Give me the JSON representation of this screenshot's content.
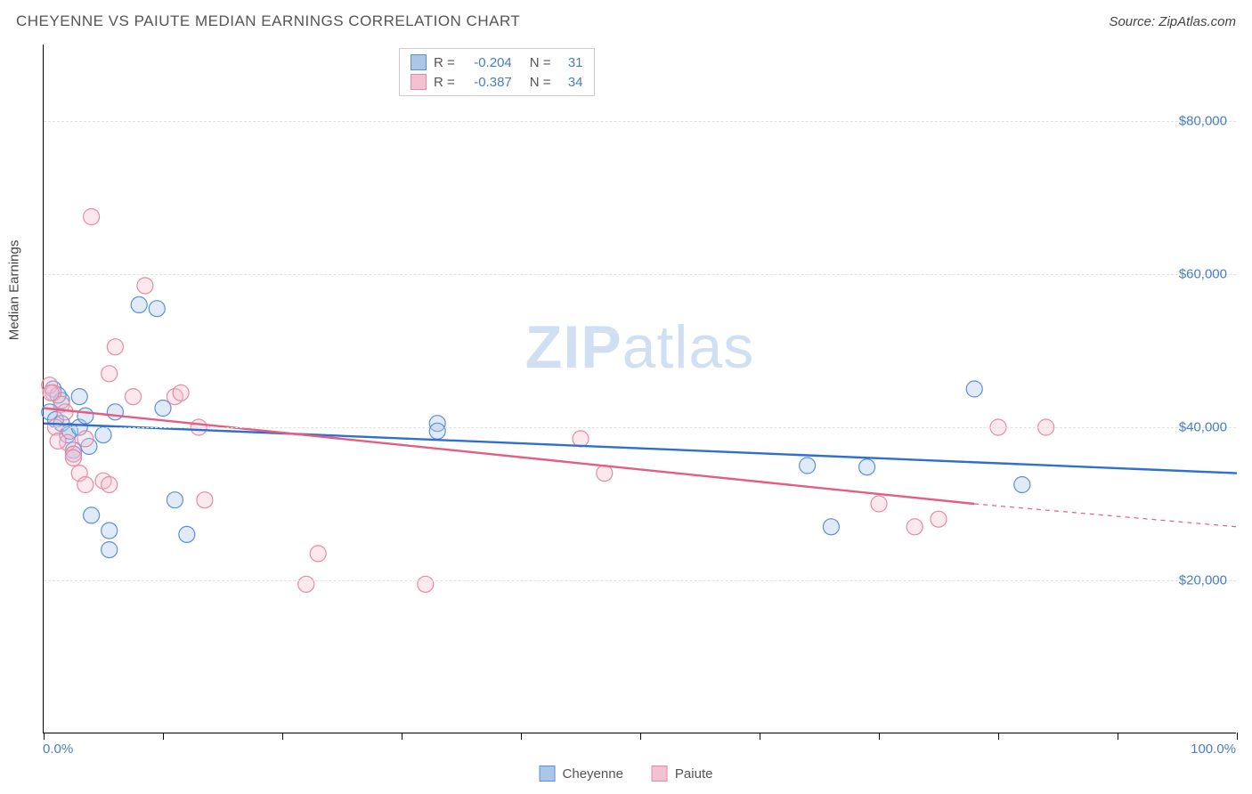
{
  "title": "CHEYENNE VS PAIUTE MEDIAN EARNINGS CORRELATION CHART",
  "source": "Source: ZipAtlas.com",
  "watermark_a": "ZIP",
  "watermark_b": "atlas",
  "y_axis_label": "Median Earnings",
  "chart": {
    "type": "scatter",
    "background_color": "#ffffff",
    "grid_color": "#e0e0e0",
    "axis_color": "#000000",
    "tick_label_color": "#4a7ebb",
    "xlim": [
      0,
      100
    ],
    "ylim": [
      0,
      90000
    ],
    "y_gridlines": [
      20000,
      40000,
      60000,
      80000
    ],
    "y_tick_labels": [
      "$20,000",
      "$40,000",
      "$60,000",
      "$80,000"
    ],
    "x_tick_positions": [
      0,
      10,
      20,
      30,
      40,
      50,
      60,
      70,
      80,
      90,
      100
    ],
    "x_start_label": "0.0%",
    "x_end_label": "100.0%",
    "marker_radius": 9,
    "marker_stroke_width": 1.2,
    "marker_fill_opacity": 0.35,
    "trend_line_width": 2.4,
    "series": [
      {
        "name": "Cheyenne",
        "color_fill": "#aac7ea",
        "color_stroke": "#5b8fd6",
        "trend_color": "#2e6fd1",
        "r_value": "-0.204",
        "n_value": "31",
        "trend": {
          "x0": 0,
          "y0": 40500,
          "x1": 100,
          "y1": 34000
        },
        "dash_from_x": 100,
        "points": [
          [
            0.5,
            42000
          ],
          [
            0.8,
            45000
          ],
          [
            1.0,
            41000
          ],
          [
            1.5,
            43500
          ],
          [
            1.5,
            40500
          ],
          [
            2.0,
            39000
          ],
          [
            2.2,
            39500
          ],
          [
            2.5,
            37000
          ],
          [
            2.5,
            36500
          ],
          [
            3.0,
            44000
          ],
          [
            3.0,
            40000
          ],
          [
            3.5,
            41500
          ],
          [
            3.8,
            37500
          ],
          [
            4.0,
            28500
          ],
          [
            5.0,
            39000
          ],
          [
            5.5,
            26500
          ],
          [
            5.5,
            24000
          ],
          [
            6.0,
            42000
          ],
          [
            8.0,
            56000
          ],
          [
            9.5,
            55500
          ],
          [
            10.0,
            42500
          ],
          [
            11.0,
            30500
          ],
          [
            12.0,
            26000
          ],
          [
            33.0,
            40500
          ],
          [
            33.0,
            39500
          ],
          [
            64.0,
            35000
          ],
          [
            66.0,
            27000
          ],
          [
            69.0,
            34800
          ],
          [
            78.0,
            45000
          ],
          [
            82.0,
            32500
          ],
          [
            1.2,
            44200
          ]
        ]
      },
      {
        "name": "Paiute",
        "color_fill": "#f3c1cf",
        "color_stroke": "#e68aa5",
        "trend_color": "#e35e84",
        "r_value": "-0.387",
        "n_value": "34",
        "trend": {
          "x0": 0,
          "y0": 42500,
          "x1": 78,
          "y1": 30000
        },
        "dash_from_x": 78,
        "dash_to": {
          "x": 100,
          "y": 27000
        },
        "points": [
          [
            0.5,
            45500
          ],
          [
            0.8,
            44500
          ],
          [
            0.6,
            44500
          ],
          [
            1.0,
            40000
          ],
          [
            1.5,
            43000
          ],
          [
            1.8,
            42000
          ],
          [
            2.0,
            38000
          ],
          [
            2.5,
            36500
          ],
          [
            2.5,
            36000
          ],
          [
            3.0,
            34000
          ],
          [
            3.5,
            32500
          ],
          [
            3.5,
            38500
          ],
          [
            4.0,
            67500
          ],
          [
            5.0,
            33000
          ],
          [
            5.5,
            32500
          ],
          [
            5.5,
            47000
          ],
          [
            6.0,
            50500
          ],
          [
            7.5,
            44000
          ],
          [
            8.5,
            58500
          ],
          [
            11.0,
            44000
          ],
          [
            11.5,
            44500
          ],
          [
            13.0,
            40000
          ],
          [
            13.5,
            30500
          ],
          [
            22.0,
            19500
          ],
          [
            23.0,
            23500
          ],
          [
            32.0,
            19500
          ],
          [
            45.0,
            38500
          ],
          [
            47.0,
            34000
          ],
          [
            70.0,
            30000
          ],
          [
            73.0,
            27000
          ],
          [
            75.0,
            28000
          ],
          [
            80.0,
            40000
          ],
          [
            84.0,
            40000
          ],
          [
            1.2,
            38200
          ]
        ]
      }
    ]
  },
  "legend_top": {
    "r_label": "R =",
    "n_label": "N ="
  },
  "legend_bottom": [
    {
      "label": "Cheyenne",
      "fill": "#aac7ea",
      "stroke": "#5b8fd6"
    },
    {
      "label": "Paiute",
      "fill": "#f3c1cf",
      "stroke": "#e68aa5"
    }
  ]
}
